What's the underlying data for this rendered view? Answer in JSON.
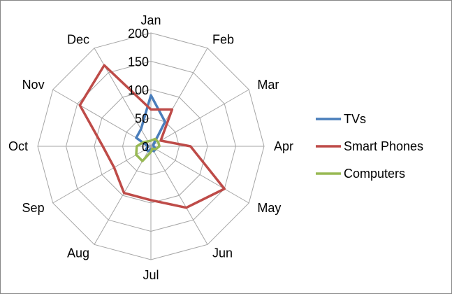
{
  "chart_data": {
    "type": "radar",
    "title": "",
    "categories": [
      "Jan",
      "Feb",
      "Mar",
      "Apr",
      "May",
      "Jun",
      "Jul",
      "Aug",
      "Sep",
      "Oct",
      "Nov",
      "Dec"
    ],
    "rmin": 0,
    "rmax": 200,
    "ticks": [
      0,
      50,
      100,
      150,
      200
    ],
    "tick_labels": [
      "0",
      "50",
      "100",
      "150",
      "200"
    ],
    "grid": true,
    "legend_position": "right",
    "series": [
      {
        "name": "TVs",
        "color": "#4a7ebb",
        "values": [
          90,
          50,
          5,
          5,
          10,
          10,
          5,
          10,
          10,
          5,
          30,
          35
        ]
      },
      {
        "name": "Smart Phones",
        "color": "#be4b48",
        "values": [
          65,
          75,
          20,
          70,
          150,
          125,
          95,
          95,
          75,
          85,
          145,
          165
        ]
      },
      {
        "name": "Computers",
        "color": "#98b954",
        "values": [
          10,
          15,
          15,
          15,
          10,
          5,
          10,
          30,
          30,
          25,
          15,
          10
        ]
      }
    ]
  }
}
